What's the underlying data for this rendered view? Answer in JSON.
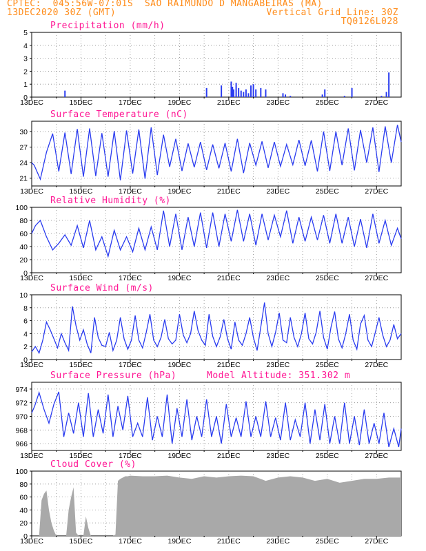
{
  "header": {
    "line1": "CPTEC:  045:56W-07:01S  SAO RAIMUNDO D MANGABEIRAS (MA)",
    "date": "13DEC2020 30Z (GMT)",
    "vgrid": "Vertical Grid Line: 30Z",
    "code": "TQ0126L028"
  },
  "colors": {
    "header": "#ff8c1a",
    "title": "#ff1493",
    "series": "#2a3cf0",
    "cloud": "#a9a9a9",
    "grid": "#888888"
  },
  "x_tick_labels": [
    "13DEC",
    "15DEC",
    "17DEC",
    "19DEC",
    "21DEC",
    "23DEC",
    "25DEC",
    "27DEC"
  ],
  "chart_data": [
    {
      "type": "bar",
      "title": "Precipitation (mm/h)",
      "ylim": [
        0,
        5
      ],
      "yticks": [
        0,
        1,
        2,
        3,
        4,
        5
      ],
      "x_unit": "day offset from 13DEC",
      "x": [
        1.35,
        7.1,
        7.7,
        8.1,
        8.15,
        8.2,
        8.3,
        8.4,
        8.5,
        8.6,
        8.7,
        8.8,
        8.9,
        9.0,
        9.1,
        9.3,
        9.5,
        10.2,
        10.3,
        10.5,
        11.8,
        11.9,
        12.7,
        13.0,
        14.2,
        14.4,
        14.5
      ],
      "values": [
        0.5,
        0.7,
        0.9,
        1.2,
        0.8,
        0.6,
        1.1,
        0.7,
        0.5,
        0.4,
        0.6,
        0.3,
        0.9,
        1.0,
        0.6,
        0.7,
        0.6,
        0.3,
        0.2,
        0.1,
        0.2,
        0.6,
        0.1,
        0.7,
        0.1,
        0.4,
        1.9
      ]
    },
    {
      "type": "line",
      "title": "Surface Temperature (nC)",
      "ylim": [
        19.5,
        32
      ],
      "yticks": [
        21,
        24,
        27,
        30
      ],
      "x_unit": "day offset from 13DEC",
      "series": [
        {
          "x": [
            0,
            0.1,
            0.35,
            0.6,
            0.85,
            1.1,
            1.35,
            1.6,
            1.85,
            2.1,
            2.35,
            2.6,
            2.85,
            3.1,
            3.35,
            3.6,
            3.85,
            4.1,
            4.35,
            4.6,
            4.85,
            5.1,
            5.35,
            5.6,
            5.85,
            6.1,
            6.35,
            6.6,
            6.85,
            7.1,
            7.35,
            7.6,
            7.85,
            8.1,
            8.35,
            8.6,
            8.85,
            9.1,
            9.35,
            9.6,
            9.85,
            10.1,
            10.35,
            10.6,
            10.85,
            11.1,
            11.35,
            11.6,
            11.85,
            12.1,
            12.35,
            12.6,
            12.85,
            13.1,
            13.35,
            13.6,
            13.85,
            14.1,
            14.35,
            14.6,
            14.85,
            15.0
          ],
          "values": [
            24,
            23.5,
            20.8,
            26,
            29.6,
            22.3,
            29.8,
            21.8,
            30.5,
            21.3,
            30.6,
            21.4,
            29.7,
            21.3,
            30.1,
            20.6,
            30.2,
            21.9,
            30.4,
            20.9,
            30.8,
            21.6,
            29.4,
            23.2,
            28.6,
            22.4,
            27.7,
            23.1,
            28.0,
            22.6,
            27.5,
            22.9,
            27.8,
            22.3,
            28.6,
            22.0,
            27.8,
            23.5,
            28.1,
            23.0,
            28.0,
            23.3,
            27.5,
            23.6,
            28.4,
            23.4,
            28.3,
            22.3,
            30.0,
            22.4,
            30.0,
            23.5,
            30.6,
            22.5,
            30.3,
            24.0,
            30.8,
            22.2,
            31.0,
            24.0,
            31.3,
            28.0
          ]
        }
      ]
    },
    {
      "type": "line",
      "title": "Relative Humidity (%)",
      "ylim": [
        0,
        100
      ],
      "yticks": [
        0,
        20,
        40,
        60,
        80,
        100
      ],
      "x_unit": "day offset from 13DEC",
      "series": [
        {
          "x": [
            0,
            0.15,
            0.35,
            0.6,
            0.85,
            1.1,
            1.35,
            1.6,
            1.85,
            2.1,
            2.35,
            2.6,
            2.85,
            3.1,
            3.35,
            3.6,
            3.85,
            4.1,
            4.35,
            4.6,
            4.85,
            5.1,
            5.35,
            5.6,
            5.85,
            6.1,
            6.35,
            6.6,
            6.85,
            7.1,
            7.35,
            7.6,
            7.85,
            8.1,
            8.35,
            8.6,
            8.85,
            9.1,
            9.35,
            9.6,
            9.85,
            10.1,
            10.35,
            10.6,
            10.85,
            11.1,
            11.35,
            11.6,
            11.85,
            12.1,
            12.35,
            12.6,
            12.85,
            13.1,
            13.35,
            13.6,
            13.85,
            14.1,
            14.35,
            14.6,
            14.85,
            15.0
          ],
          "values": [
            60,
            72,
            80,
            55,
            35,
            45,
            58,
            42,
            72,
            38,
            80,
            35,
            55,
            25,
            65,
            35,
            55,
            32,
            68,
            35,
            70,
            35,
            95,
            40,
            90,
            35,
            85,
            40,
            92,
            38,
            92,
            40,
            90,
            48,
            96,
            48,
            90,
            42,
            90,
            50,
            88,
            55,
            95,
            45,
            85,
            48,
            85,
            50,
            88,
            45,
            90,
            45,
            85,
            40,
            82,
            38,
            90,
            45,
            80,
            42,
            68,
            52
          ]
        }
      ]
    },
    {
      "type": "line",
      "title": "Surface Wind (m/s)",
      "ylim": [
        0,
        10
      ],
      "yticks": [
        0,
        2,
        4,
        6,
        8,
        10
      ],
      "x_unit": "day offset from 13DEC",
      "series": [
        {
          "x": [
            0,
            0.15,
            0.3,
            0.45,
            0.6,
            0.75,
            0.9,
            1.05,
            1.2,
            1.35,
            1.5,
            1.65,
            1.8,
            1.95,
            2.1,
            2.25,
            2.4,
            2.55,
            2.7,
            2.85,
            3.0,
            3.15,
            3.3,
            3.45,
            3.6,
            3.75,
            3.9,
            4.05,
            4.2,
            4.35,
            4.5,
            4.65,
            4.8,
            4.95,
            5.1,
            5.25,
            5.4,
            5.55,
            5.7,
            5.85,
            6.0,
            6.15,
            6.3,
            6.45,
            6.6,
            6.75,
            6.9,
            7.05,
            7.2,
            7.35,
            7.5,
            7.65,
            7.8,
            7.95,
            8.1,
            8.25,
            8.4,
            8.55,
            8.7,
            8.85,
            9.0,
            9.15,
            9.3,
            9.45,
            9.6,
            9.75,
            9.9,
            10.05,
            10.2,
            10.35,
            10.5,
            10.65,
            10.8,
            10.95,
            11.1,
            11.25,
            11.4,
            11.55,
            11.7,
            11.85,
            12.0,
            12.15,
            12.3,
            12.45,
            12.6,
            12.75,
            12.9,
            13.05,
            13.2,
            13.35,
            13.5,
            13.65,
            13.8,
            13.95,
            14.1,
            14.25,
            14.4,
            14.55,
            14.7,
            14.85,
            15.0
          ],
          "values": [
            1.2,
            2.0,
            1.0,
            3.0,
            5.8,
            4.6,
            3.2,
            1.8,
            4.0,
            2.6,
            1.4,
            8.2,
            5.2,
            3.0,
            4.6,
            2.4,
            1.0,
            6.5,
            3.4,
            2.2,
            2.0,
            4.2,
            1.4,
            3.0,
            6.5,
            3.2,
            1.6,
            3.0,
            6.8,
            3.0,
            1.8,
            4.2,
            7.0,
            3.0,
            2.0,
            3.4,
            6.2,
            3.2,
            2.4,
            3.0,
            7.0,
            3.8,
            2.6,
            4.0,
            7.5,
            4.5,
            3.0,
            2.2,
            7.0,
            3.6,
            2.0,
            3.5,
            6.2,
            3.2,
            1.6,
            5.8,
            3.0,
            2.2,
            4.0,
            6.5,
            3.4,
            1.4,
            5.0,
            8.8,
            4.0,
            2.0,
            4.2,
            7.2,
            3.0,
            2.6,
            6.5,
            3.4,
            2.0,
            4.0,
            7.2,
            3.2,
            2.4,
            4.2,
            7.5,
            3.4,
            1.6,
            5.0,
            7.4,
            3.2,
            1.8,
            4.0,
            7.0,
            3.0,
            1.6,
            5.5,
            6.8,
            3.0,
            2.0,
            4.2,
            6.5,
            3.8,
            2.0,
            3.0,
            5.4,
            3.2,
            4.0
          ]
        }
      ]
    },
    {
      "type": "line",
      "title": "Surface Pressure (hPa)",
      "annotation": "Model Altitude: 351.302 m",
      "ylim": [
        965,
        975
      ],
      "yticks": [
        966,
        968,
        970,
        972,
        974
      ],
      "x_unit": "day offset from 13DEC",
      "series": [
        {
          "x": [
            0,
            0.12,
            0.3,
            0.5,
            0.7,
            0.9,
            1.1,
            1.3,
            1.5,
            1.7,
            1.9,
            2.1,
            2.3,
            2.5,
            2.7,
            2.9,
            3.1,
            3.3,
            3.5,
            3.7,
            3.9,
            4.1,
            4.3,
            4.5,
            4.7,
            4.9,
            5.1,
            5.3,
            5.5,
            5.7,
            5.9,
            6.1,
            6.3,
            6.5,
            6.7,
            6.9,
            7.1,
            7.3,
            7.5,
            7.7,
            7.9,
            8.1,
            8.3,
            8.5,
            8.7,
            8.9,
            9.1,
            9.3,
            9.5,
            9.7,
            9.9,
            10.1,
            10.3,
            10.5,
            10.7,
            10.9,
            11.1,
            11.3,
            11.5,
            11.7,
            11.9,
            12.1,
            12.3,
            12.5,
            12.7,
            12.9,
            13.1,
            13.3,
            13.5,
            13.7,
            13.9,
            14.1,
            14.3,
            14.5,
            14.7,
            14.9,
            15.0
          ],
          "values": [
            970.5,
            971.5,
            973.5,
            971.0,
            969.0,
            971.8,
            973.6,
            967.0,
            970.5,
            967.5,
            972.0,
            967.0,
            973.4,
            967.0,
            971.0,
            967.5,
            973.2,
            967.0,
            971.5,
            968.0,
            973.0,
            967.0,
            969.0,
            967.0,
            972.8,
            966.5,
            970.0,
            967.0,
            973.2,
            966.0,
            971.2,
            967.0,
            972.5,
            966.5,
            970.0,
            967.0,
            972.5,
            967.0,
            970.0,
            966.0,
            971.8,
            967.0,
            969.8,
            967.0,
            972.2,
            967.0,
            970.0,
            967.0,
            972.2,
            967.0,
            969.8,
            966.5,
            972.0,
            966.5,
            969.5,
            967.0,
            972.0,
            966.0,
            971.0,
            966.5,
            971.8,
            966.0,
            970.0,
            966.0,
            972.0,
            966.0,
            970.0,
            965.8,
            971.0,
            966.0,
            969.0,
            966.0,
            970.5,
            965.5,
            968.2,
            965.5,
            968.2
          ]
        }
      ]
    },
    {
      "type": "area",
      "title": "Cloud Cover (%)",
      "ylim": [
        0,
        100
      ],
      "yticks": [
        0,
        20,
        40,
        60,
        80,
        100
      ],
      "x_unit": "day offset from 13DEC",
      "series": [
        {
          "x": [
            0,
            0.1,
            0.2,
            0.3,
            0.4,
            0.5,
            0.6,
            0.7,
            0.8,
            0.9,
            1.0,
            1.1,
            1.2,
            1.3,
            1.4,
            1.5,
            1.6,
            1.7,
            1.8,
            1.9,
            2.0,
            2.1,
            2.2,
            2.3,
            2.4,
            2.5,
            2.6,
            2.7,
            2.8,
            2.9,
            3.0,
            3.1,
            3.2,
            3.3,
            3.4,
            3.5,
            3.6,
            3.7,
            3.8,
            3.9,
            4.0,
            4.5,
            5.0,
            5.5,
            6.0,
            6.5,
            7.0,
            7.5,
            8.0,
            8.5,
            9.0,
            9.5,
            10.0,
            10.5,
            11.0,
            11.5,
            12.0,
            12.5,
            13.0,
            13.5,
            14.0,
            14.5,
            15.0
          ],
          "values": [
            0,
            0,
            0,
            0,
            55,
            65,
            70,
            40,
            20,
            8,
            0,
            0,
            0,
            0,
            0,
            40,
            60,
            75,
            5,
            0,
            0,
            0,
            30,
            12,
            0,
            0,
            0,
            0,
            0,
            0,
            0,
            0,
            0,
            0,
            2,
            85,
            88,
            90,
            92,
            92,
            93,
            92,
            92,
            93,
            90,
            88,
            92,
            90,
            92,
            93,
            92,
            85,
            90,
            92,
            90,
            85,
            88,
            82,
            85,
            88,
            88,
            90,
            90
          ]
        }
      ]
    }
  ]
}
